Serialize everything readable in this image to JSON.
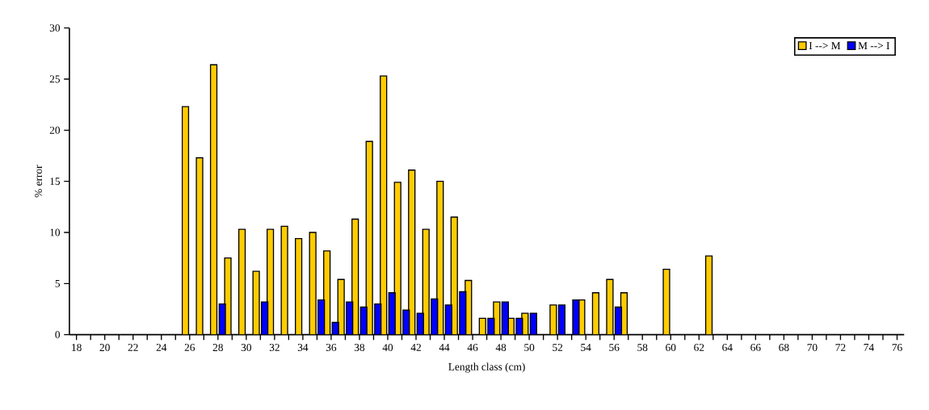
{
  "chart_data": {
    "type": "bar",
    "xlabel": "Length class (cm)",
    "ylabel": "% error",
    "categories": [
      "18",
      null,
      "20",
      null,
      "22",
      null,
      "24",
      null,
      "26",
      null,
      "28",
      null,
      "30",
      null,
      "32",
      null,
      "34",
      null,
      "36",
      null,
      "38",
      null,
      "40",
      null,
      "42",
      null,
      "44",
      null,
      "46",
      null,
      "48",
      null,
      "50",
      null,
      "52",
      null,
      "54",
      null,
      "56",
      null,
      "58",
      null,
      "60",
      null,
      "62",
      null,
      "64",
      null,
      "66",
      null,
      "68",
      null,
      "70",
      null,
      "72",
      null,
      "74",
      null,
      "76"
    ],
    "series": [
      {
        "name": "I --> M",
        "color": "#ffcc00",
        "values": [
          null,
          null,
          null,
          null,
          null,
          null,
          null,
          null,
          22.3,
          17.3,
          26.4,
          7.5,
          10.3,
          6.2,
          10.3,
          10.6,
          9.4,
          10.0,
          8.2,
          5.4,
          11.3,
          18.9,
          25.3,
          14.9,
          16.1,
          10.3,
          15.0,
          11.5,
          5.3,
          1.6,
          3.2,
          1.6,
          2.1,
          null,
          2.9,
          null,
          3.4,
          4.1,
          5.4,
          4.1,
          null,
          null,
          6.4,
          null,
          null,
          7.7,
          null,
          null,
          null,
          null,
          null,
          null,
          null,
          null,
          null,
          null,
          null,
          null,
          null
        ]
      },
      {
        "name": "M --> I",
        "color": "#0000ff",
        "values": [
          null,
          null,
          null,
          null,
          null,
          null,
          null,
          null,
          null,
          null,
          3.0,
          null,
          null,
          3.2,
          null,
          null,
          null,
          3.4,
          1.2,
          3.2,
          2.7,
          3.0,
          4.1,
          2.4,
          2.1,
          3.5,
          2.9,
          4.2,
          null,
          1.6,
          3.2,
          1.6,
          2.1,
          null,
          2.9,
          3.4,
          null,
          null,
          2.7,
          null,
          null,
          null,
          null,
          null,
          null,
          null,
          null,
          null,
          null,
          null,
          null,
          null,
          null,
          null,
          null,
          null,
          null,
          null,
          null
        ]
      }
    ],
    "ylim": [
      0,
      30
    ],
    "yticks": [
      0,
      5,
      10,
      15,
      20,
      25,
      30
    ],
    "grid": false,
    "legend": "top right"
  }
}
